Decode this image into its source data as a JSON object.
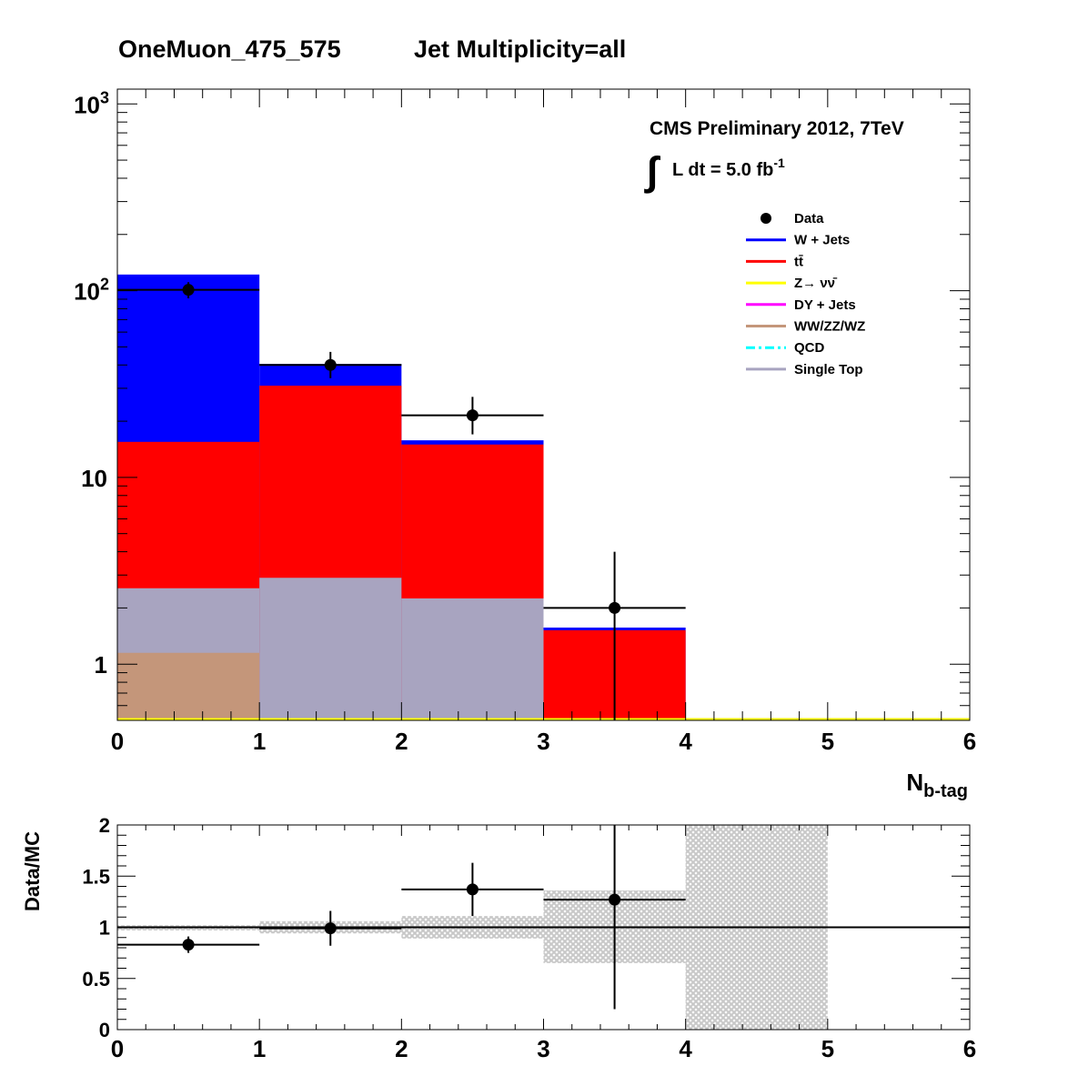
{
  "title": {
    "selection": "OneMuon_475_575",
    "multiplicity": "Jet Multiplicity=all"
  },
  "annotations": {
    "experiment": "CMS Preliminary 2012, 7TeV",
    "integral_sign": "∫",
    "lumi_prefix": "L dt = 5.0 fb",
    "lumi_exponent": "-1"
  },
  "legend": {
    "items": [
      {
        "key": "data",
        "label": "Data",
        "color": "#000000",
        "style": "marker"
      },
      {
        "key": "wjets",
        "label": "W + Jets",
        "color": "#0000ff",
        "style": "line"
      },
      {
        "key": "ttbar",
        "label": "tt̄",
        "color": "#ff0000",
        "style": "line"
      },
      {
        "key": "znunu",
        "label": "Z→ νν̄",
        "color": "#ffff00",
        "style": "line"
      },
      {
        "key": "dy",
        "label": "DY + Jets",
        "color": "#ff00ff",
        "style": "line"
      },
      {
        "key": "diboson",
        "label": "WW/ZZ/WZ",
        "color": "#c4967a",
        "style": "line"
      },
      {
        "key": "qcd",
        "label": "QCD",
        "color": "#00ffff",
        "style": "dashdot"
      },
      {
        "key": "singletop",
        "label": "Single Top",
        "color": "#a8a4c0",
        "style": "line"
      }
    ]
  },
  "chart_data": [
    {
      "type": "bar",
      "stacked": true,
      "log_y": true,
      "xlabel": "N",
      "xlabel_sub": "b-tag",
      "ylabel": "",
      "xlim": [
        0,
        6
      ],
      "ylim": [
        0.5,
        1200
      ],
      "x_ticks": [
        "0",
        "1",
        "2",
        "3",
        "4",
        "5",
        "6"
      ],
      "y_ticks": [
        {
          "value": 1,
          "base": "1",
          "exp": ""
        },
        {
          "value": 10,
          "base": "10",
          "exp": ""
        },
        {
          "value": 100,
          "base": "10",
          "exp": "2"
        },
        {
          "value": 1000,
          "base": "10",
          "exp": "3"
        }
      ],
      "bin_edges": [
        0,
        1,
        2,
        3,
        4,
        5,
        6
      ],
      "stack": [
        {
          "name": "WW/ZZ/WZ",
          "color": "#c4967a",
          "cumulative": [
            1.15,
            0,
            0,
            0,
            0,
            0
          ]
        },
        {
          "name": "Single Top",
          "color": "#a8a4c0",
          "cumulative": [
            2.55,
            2.9,
            2.25,
            0,
            0,
            0
          ]
        },
        {
          "name": "tt̄",
          "color": "#ff0000",
          "cumulative": [
            15.5,
            31,
            15,
            1.52,
            0,
            0
          ]
        },
        {
          "name": "W + Jets",
          "color": "#0000ff",
          "cumulative": [
            122,
            40.5,
            15.8,
            1.57,
            0,
            0
          ]
        }
      ],
      "baseline_color": "#ffff00",
      "data_points": [
        {
          "x": 0.5,
          "y": 101,
          "y_low": 91,
          "y_high": 111
        },
        {
          "x": 1.5,
          "y": 40,
          "y_low": 34,
          "y_high": 47
        },
        {
          "x": 2.5,
          "y": 21.5,
          "y_low": 17,
          "y_high": 27
        },
        {
          "x": 3.5,
          "y": 2,
          "y_low": 0.5,
          "y_high": 4
        }
      ]
    },
    {
      "type": "scatter",
      "ylabel": "Data/MC",
      "xlabel": "",
      "xlim": [
        0,
        6
      ],
      "ylim": [
        0,
        2
      ],
      "x_ticks": [
        "0",
        "1",
        "2",
        "3",
        "4",
        "5",
        "6"
      ],
      "y_ticks": [
        {
          "value": 0,
          "label": "0"
        },
        {
          "value": 0.5,
          "label": "0.5"
        },
        {
          "value": 1,
          "label": "1"
        },
        {
          "value": 1.5,
          "label": "1.5"
        },
        {
          "value": 2,
          "label": "2"
        }
      ],
      "reference_line": 1,
      "uncertainty_band": [
        {
          "x0": 0,
          "x1": 1,
          "low": 0.97,
          "high": 1.02
        },
        {
          "x0": 1,
          "x1": 2,
          "low": 0.94,
          "high": 1.06
        },
        {
          "x0": 2,
          "x1": 3,
          "low": 0.89,
          "high": 1.11
        },
        {
          "x0": 3,
          "x1": 4,
          "low": 0.65,
          "high": 1.36
        },
        {
          "x0": 4,
          "x1": 5,
          "low": 0,
          "high": 2
        }
      ],
      "points": [
        {
          "x": 0.5,
          "y": 0.83,
          "y_low": 0.75,
          "y_high": 0.91
        },
        {
          "x": 1.5,
          "y": 0.99,
          "y_low": 0.82,
          "y_high": 1.16
        },
        {
          "x": 2.5,
          "y": 1.37,
          "y_low": 1.11,
          "y_high": 1.63
        },
        {
          "x": 3.5,
          "y": 1.27,
          "y_low": 0.2,
          "y_high": 2.0
        }
      ]
    }
  ]
}
